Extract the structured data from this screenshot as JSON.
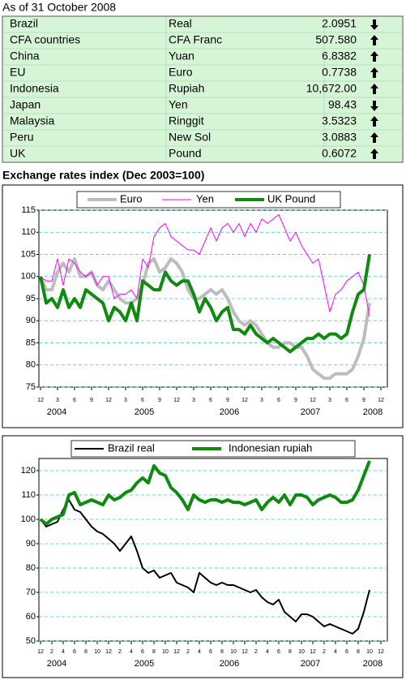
{
  "table": {
    "caption": "As of 31 October 2008",
    "rows": [
      [
        "Brazil",
        "Real",
        "2.0951"
      ],
      [
        "CFA countries",
        "CFA Franc",
        "507.580"
      ],
      [
        "China",
        "Yuan",
        "6.8382"
      ],
      [
        "EU",
        "Euro",
        "0.7738"
      ],
      [
        "Indonesia",
        "Rupiah",
        "10,672.00"
      ],
      [
        "Japan",
        "Yen",
        "98.43"
      ],
      [
        "Malaysia",
        "Ringgit",
        "3.5323"
      ],
      [
        "Peru",
        "New Sol",
        "3.0883"
      ],
      [
        "UK",
        "Pound",
        "0.6072"
      ]
    ],
    "trend": [
      "down",
      "up",
      "up",
      "up",
      "up",
      "down",
      "up",
      "up",
      "up"
    ]
  },
  "chart_data": [
    {
      "type": "line",
      "title": "Exchange rates index (Dec 2003=100)",
      "categories": [
        "12",
        null,
        null,
        "3",
        null,
        null,
        "6",
        null,
        null,
        "9",
        null,
        null,
        "12",
        null,
        null,
        "3",
        null,
        null,
        "6",
        null,
        null,
        "9",
        null,
        null,
        "12",
        null,
        null,
        "3",
        null,
        null,
        "6",
        null,
        null,
        "9",
        null,
        null,
        "12",
        null,
        null,
        "3",
        null,
        null,
        "6",
        null,
        null,
        "9",
        null,
        null,
        "12",
        null,
        null,
        "3",
        null,
        null,
        "6",
        null,
        null,
        "9",
        null,
        null,
        "12"
      ],
      "year_labels": [
        "2004",
        "2005",
        "2006",
        "2007",
        "2008"
      ],
      "ylim": [
        75,
        115
      ],
      "yticks": [
        75,
        80,
        85,
        90,
        95,
        100,
        105,
        110,
        115
      ],
      "grid": true,
      "series": [
        {
          "name": "Euro",
          "color": "#bdbdbd",
          "width": 4,
          "values": [
            100,
            97,
            97,
            101,
            103,
            101,
            104,
            100,
            100,
            101,
            98,
            97,
            99,
            97,
            95,
            94,
            94,
            95,
            98,
            103,
            104,
            101,
            102,
            104,
            103,
            101,
            97,
            95,
            95,
            96,
            97,
            96,
            97,
            95,
            92,
            90,
            89,
            90,
            89,
            87,
            85,
            84,
            84,
            85,
            85,
            84,
            84,
            82,
            79,
            78,
            77,
            77,
            78,
            78,
            78,
            79,
            82,
            86,
            94,
            null,
            null
          ]
        },
        {
          "name": "Yen",
          "color": "#ff00ff",
          "width": 1,
          "values": [
            100,
            99,
            99,
            104,
            98,
            104,
            103,
            101,
            100,
            101,
            98,
            100,
            100,
            95,
            96,
            96,
            97,
            95,
            104,
            102,
            109,
            111,
            112,
            109,
            108,
            107,
            106,
            106,
            105,
            108,
            111,
            108,
            111,
            112,
            110,
            112,
            109,
            112,
            110,
            113,
            112,
            113,
            114,
            111,
            108,
            110,
            107,
            105,
            103,
            104,
            98,
            92,
            96,
            97,
            99,
            100,
            101,
            98,
            91,
            null,
            null
          ]
        },
        {
          "name": "UK Pound",
          "color": "#108a10",
          "width": 4,
          "values": [
            100,
            94,
            95,
            93,
            97,
            93,
            95,
            93,
            97,
            96,
            95,
            94,
            90,
            93,
            92,
            90,
            94,
            90,
            99,
            98,
            97,
            97,
            101,
            99,
            98,
            99,
            99,
            96,
            92,
            95,
            93,
            90,
            92,
            93,
            88,
            88,
            87,
            89,
            87,
            86,
            85,
            86,
            85,
            84,
            83,
            84,
            85,
            86,
            86,
            87,
            86,
            87,
            87,
            86,
            87,
            92,
            96,
            97,
            105,
            null,
            null
          ]
        }
      ]
    },
    {
      "type": "line",
      "categories": [
        "12",
        null,
        "2",
        null,
        "4",
        null,
        "6",
        null,
        "8",
        null,
        "10",
        null,
        "12",
        null,
        "2",
        null,
        "4",
        null,
        "6",
        null,
        "8",
        null,
        "10",
        null,
        "12",
        null,
        "2",
        null,
        "4",
        null,
        "6",
        null,
        "8",
        null,
        "10",
        null,
        "12",
        null,
        "2",
        null,
        "4",
        null,
        "6",
        null,
        "8",
        null,
        "10",
        null,
        "12",
        null,
        "2",
        null,
        "4",
        null,
        "6",
        null,
        "8",
        null,
        "10",
        null,
        "12"
      ],
      "year_labels": [
        "2004",
        "2005",
        "2006",
        "2007",
        "2008"
      ],
      "ylim": [
        50,
        125
      ],
      "yticks": [
        50,
        60,
        70,
        80,
        90,
        100,
        110,
        120
      ],
      "grid": true,
      "series": [
        {
          "name": "Brazil real",
          "color": "#000000",
          "width": 2,
          "values": [
            100,
            97,
            98,
            99,
            104,
            108,
            104,
            103,
            100,
            97,
            95,
            94,
            92,
            90,
            87,
            90,
            93,
            87,
            80,
            78,
            79,
            76,
            77,
            78,
            74,
            73,
            72,
            70,
            78,
            76,
            74,
            73,
            74,
            73,
            73,
            72,
            71,
            70,
            71,
            68,
            66,
            65,
            67,
            62,
            60,
            58,
            61,
            61,
            60,
            58,
            56,
            57,
            56,
            55,
            54,
            53,
            55,
            62,
            71,
            null,
            null
          ]
        },
        {
          "name": "Indonesian rupiah",
          "color": "#108a10",
          "width": 4,
          "values": [
            100,
            98,
            100,
            101,
            102,
            110,
            111,
            106,
            107,
            108,
            107,
            106,
            110,
            108,
            109,
            111,
            112,
            115,
            117,
            115,
            122,
            119,
            118,
            113,
            111,
            108,
            104,
            110,
            108,
            107,
            108,
            108,
            107,
            108,
            107,
            107,
            106,
            107,
            108,
            104,
            107,
            109,
            107,
            110,
            106,
            110,
            110,
            109,
            106,
            108,
            109,
            110,
            109,
            107,
            107,
            108,
            112,
            118,
            124,
            null,
            null
          ]
        }
      ]
    }
  ]
}
